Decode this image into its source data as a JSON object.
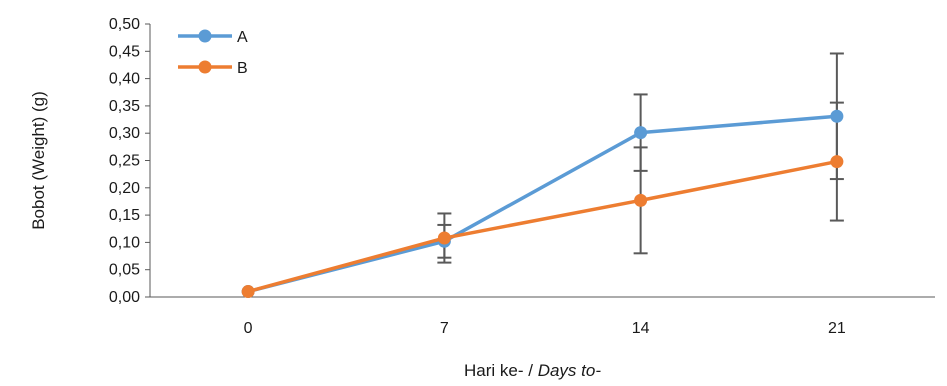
{
  "chart_data": {
    "type": "line",
    "title": "",
    "xlabel_main": "Hari ke- / ",
    "xlabel_italic": "Days to-",
    "ylabel": "Bobot  (Weight) (g)",
    "categories": [
      "0",
      "7",
      "14",
      "21"
    ],
    "ylim": [
      0,
      0.5
    ],
    "yticks": [
      "0,00",
      "0,05",
      "0,10",
      "0,15",
      "0,20",
      "0,25",
      "0,30",
      "0,35",
      "0,40",
      "0,45",
      "0,50"
    ],
    "grid": false,
    "legend_position": "top-left",
    "series": [
      {
        "name": "A",
        "color": "#5B9BD5",
        "values": [
          0.01,
          0.102,
          0.301,
          0.331
        ],
        "errors": [
          0.0,
          0.03,
          0.07,
          0.115
        ]
      },
      {
        "name": "B",
        "color": "#ED7D31",
        "values": [
          0.01,
          0.108,
          0.177,
          0.248
        ],
        "errors": [
          0.0,
          0.045,
          0.097,
          0.108
        ]
      }
    ],
    "error_bar_color": "#595959"
  }
}
